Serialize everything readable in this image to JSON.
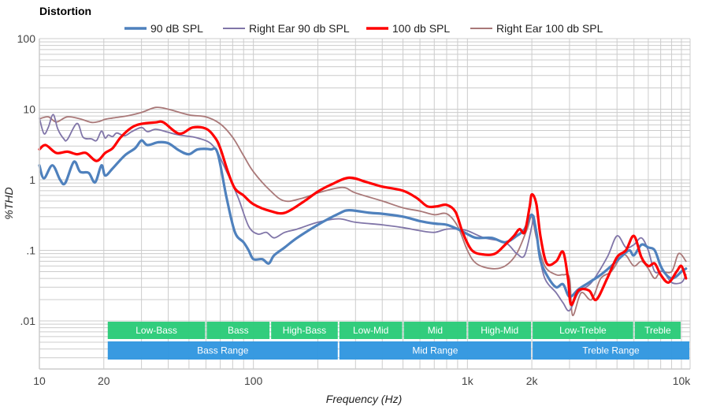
{
  "chart_data": {
    "type": "line",
    "title": "Distortion",
    "xlabel": "Frequency (Hz)",
    "ylabel": "%THD",
    "xscale": "log",
    "yscale": "log",
    "xlim": [
      10,
      11000
    ],
    "ylim": [
      0.0008,
      100
    ],
    "grid": true,
    "legend_position": "top-center",
    "x_ticks": [
      {
        "value": 10,
        "label": "10"
      },
      {
        "value": 20,
        "label": "20"
      },
      {
        "value": 100,
        "label": "100"
      },
      {
        "value": 1000,
        "label": "1k"
      },
      {
        "value": 2000,
        "label": "2k"
      },
      {
        "value": 10000,
        "label": "10k"
      }
    ],
    "y_ticks": [
      {
        "value": 100,
        "label": "100"
      },
      {
        "value": 10,
        "label": "10"
      },
      {
        "value": 1,
        "label": "1"
      },
      {
        "value": 0.1,
        "label": ".1"
      },
      {
        "value": 0.01,
        "label": ".01"
      }
    ],
    "series": [
      {
        "name": "90 dB SPL",
        "color": "#4f81bd",
        "width": 3.2,
        "points": [
          [
            10,
            1.6
          ],
          [
            10.5,
            1.05
          ],
          [
            11.5,
            1.6
          ],
          [
            12.5,
            1.0
          ],
          [
            13.2,
            0.9
          ],
          [
            14.5,
            1.8
          ],
          [
            15.5,
            1.3
          ],
          [
            17,
            1.25
          ],
          [
            18.2,
            0.92
          ],
          [
            19.5,
            1.6
          ],
          [
            20.3,
            1.15
          ],
          [
            22,
            1.45
          ],
          [
            25,
            2.2
          ],
          [
            28,
            2.8
          ],
          [
            30,
            3.6
          ],
          [
            32,
            3.1
          ],
          [
            36,
            3.4
          ],
          [
            40,
            3.3
          ],
          [
            45,
            2.6
          ],
          [
            50,
            2.3
          ],
          [
            55,
            2.7
          ],
          [
            63,
            2.7
          ],
          [
            68,
            2.4
          ],
          [
            75,
            0.55
          ],
          [
            82,
            0.18
          ],
          [
            90,
            0.13
          ],
          [
            95,
            0.1
          ],
          [
            100,
            0.075
          ],
          [
            110,
            0.075
          ],
          [
            118,
            0.065
          ],
          [
            125,
            0.085
          ],
          [
            140,
            0.11
          ],
          [
            160,
            0.15
          ],
          [
            200,
            0.23
          ],
          [
            250,
            0.33
          ],
          [
            280,
            0.37
          ],
          [
            350,
            0.34
          ],
          [
            400,
            0.33
          ],
          [
            500,
            0.3
          ],
          [
            600,
            0.26
          ],
          [
            700,
            0.24
          ],
          [
            800,
            0.23
          ],
          [
            900,
            0.2
          ],
          [
            1000,
            0.17
          ],
          [
            1100,
            0.15
          ],
          [
            1300,
            0.15
          ],
          [
            1500,
            0.13
          ],
          [
            1700,
            0.16
          ],
          [
            1850,
            0.2
          ],
          [
            2000,
            0.32
          ],
          [
            2100,
            0.18
          ],
          [
            2200,
            0.07
          ],
          [
            2400,
            0.04
          ],
          [
            2600,
            0.03
          ],
          [
            2800,
            0.033
          ],
          [
            3000,
            0.022
          ],
          [
            3300,
            0.028
          ],
          [
            3700,
            0.035
          ],
          [
            4200,
            0.045
          ],
          [
            4700,
            0.06
          ],
          [
            5200,
            0.08
          ],
          [
            5700,
            0.1
          ],
          [
            6000,
            0.085
          ],
          [
            6500,
            0.12
          ],
          [
            7000,
            0.11
          ],
          [
            7500,
            0.1
          ],
          [
            8000,
            0.06
          ],
          [
            8500,
            0.045
          ],
          [
            9000,
            0.04
          ],
          [
            9500,
            0.043
          ],
          [
            10000,
            0.05
          ],
          [
            10500,
            0.055
          ]
        ]
      },
      {
        "name": "Right Ear 90 db SPL",
        "color": "#8075a8",
        "width": 1.8,
        "points": [
          [
            10,
            7.5
          ],
          [
            10.5,
            4.5
          ],
          [
            11,
            5.5
          ],
          [
            11.6,
            8.4
          ],
          [
            12.2,
            5.2
          ],
          [
            13,
            3.8
          ],
          [
            13.5,
            3.7
          ],
          [
            15,
            6.3
          ],
          [
            16,
            4.0
          ],
          [
            17.5,
            3.8
          ],
          [
            18.5,
            3.6
          ],
          [
            19.5,
            4.9
          ],
          [
            20.3,
            3.9
          ],
          [
            21,
            4.3
          ],
          [
            22,
            4.1
          ],
          [
            23,
            4.6
          ],
          [
            25,
            4.2
          ],
          [
            27,
            4.8
          ],
          [
            30,
            5.5
          ],
          [
            32,
            4.8
          ],
          [
            35,
            5.2
          ],
          [
            40,
            4.7
          ],
          [
            45,
            4.3
          ],
          [
            55,
            3.9
          ],
          [
            65,
            3.0
          ],
          [
            75,
            1.3
          ],
          [
            85,
            0.55
          ],
          [
            95,
            0.22
          ],
          [
            105,
            0.17
          ],
          [
            115,
            0.18
          ],
          [
            125,
            0.15
          ],
          [
            140,
            0.18
          ],
          [
            160,
            0.2
          ],
          [
            200,
            0.25
          ],
          [
            250,
            0.28
          ],
          [
            300,
            0.25
          ],
          [
            400,
            0.23
          ],
          [
            500,
            0.21
          ],
          [
            600,
            0.19
          ],
          [
            700,
            0.18
          ],
          [
            800,
            0.2
          ],
          [
            900,
            0.2
          ],
          [
            1000,
            0.19
          ],
          [
            1200,
            0.15
          ],
          [
            1500,
            0.13
          ],
          [
            1700,
            0.09
          ],
          [
            1850,
            0.085
          ],
          [
            2000,
            0.22
          ],
          [
            2050,
            0.3
          ],
          [
            2150,
            0.1
          ],
          [
            2300,
            0.04
          ],
          [
            2600,
            0.025
          ],
          [
            2800,
            0.018
          ],
          [
            3000,
            0.014
          ],
          [
            3300,
            0.025
          ],
          [
            3800,
            0.035
          ],
          [
            4500,
            0.08
          ],
          [
            5000,
            0.16
          ],
          [
            5500,
            0.11
          ],
          [
            6000,
            0.12
          ],
          [
            6500,
            0.15
          ],
          [
            7000,
            0.1
          ],
          [
            7500,
            0.05
          ],
          [
            8200,
            0.05
          ],
          [
            9000,
            0.035
          ],
          [
            10000,
            0.035
          ],
          [
            10500,
            0.045
          ]
        ]
      },
      {
        "name": "100 db SPL",
        "color": "#ff0000",
        "width": 3.2,
        "points": [
          [
            10,
            2.7
          ],
          [
            10.7,
            3.1
          ],
          [
            12,
            2.4
          ],
          [
            13.5,
            2.5
          ],
          [
            15,
            2.3
          ],
          [
            16.5,
            2.4
          ],
          [
            18.5,
            1.85
          ],
          [
            20.3,
            2.4
          ],
          [
            22,
            2.8
          ],
          [
            24,
            4.0
          ],
          [
            27,
            5.5
          ],
          [
            30,
            6.2
          ],
          [
            35,
            6.5
          ],
          [
            38,
            6.5
          ],
          [
            45,
            4.5
          ],
          [
            52,
            5.5
          ],
          [
            60,
            5.3
          ],
          [
            66,
            4.0
          ],
          [
            70,
            2.8
          ],
          [
            76,
            1.3
          ],
          [
            82,
            0.75
          ],
          [
            90,
            0.6
          ],
          [
            100,
            0.45
          ],
          [
            120,
            0.36
          ],
          [
            140,
            0.34
          ],
          [
            170,
            0.48
          ],
          [
            200,
            0.68
          ],
          [
            230,
            0.85
          ],
          [
            280,
            1.07
          ],
          [
            340,
            0.92
          ],
          [
            400,
            0.8
          ],
          [
            500,
            0.7
          ],
          [
            580,
            0.55
          ],
          [
            650,
            0.42
          ],
          [
            720,
            0.42
          ],
          [
            800,
            0.44
          ],
          [
            880,
            0.35
          ],
          [
            950,
            0.18
          ],
          [
            1050,
            0.1
          ],
          [
            1200,
            0.087
          ],
          [
            1350,
            0.09
          ],
          [
            1500,
            0.12
          ],
          [
            1650,
            0.16
          ],
          [
            1750,
            0.2
          ],
          [
            1850,
            0.18
          ],
          [
            1950,
            0.4
          ],
          [
            2000,
            0.62
          ],
          [
            2100,
            0.45
          ],
          [
            2200,
            0.15
          ],
          [
            2350,
            0.065
          ],
          [
            2600,
            0.07
          ],
          [
            2800,
            0.095
          ],
          [
            2950,
            0.04
          ],
          [
            3050,
            0.017
          ],
          [
            3300,
            0.027
          ],
          [
            3700,
            0.027
          ],
          [
            4000,
            0.02
          ],
          [
            4500,
            0.04
          ],
          [
            5000,
            0.08
          ],
          [
            5500,
            0.1
          ],
          [
            6000,
            0.16
          ],
          [
            6500,
            0.08
          ],
          [
            7000,
            0.06
          ],
          [
            7500,
            0.065
          ],
          [
            8000,
            0.045
          ],
          [
            8700,
            0.035
          ],
          [
            9500,
            0.05
          ],
          [
            10000,
            0.06
          ],
          [
            10500,
            0.04
          ]
        ]
      },
      {
        "name": "Right Ear 100 db SPL",
        "color": "#a97878",
        "width": 1.8,
        "points": [
          [
            10,
            7.3
          ],
          [
            11,
            7.8
          ],
          [
            12,
            6.6
          ],
          [
            13.5,
            7.8
          ],
          [
            15.5,
            7.3
          ],
          [
            17.5,
            6.5
          ],
          [
            19,
            6.7
          ],
          [
            20.3,
            7.2
          ],
          [
            22,
            7.5
          ],
          [
            26,
            8.1
          ],
          [
            30,
            9.0
          ],
          [
            35,
            10.6
          ],
          [
            40,
            10.0
          ],
          [
            50,
            8.3
          ],
          [
            60,
            7.8
          ],
          [
            70,
            6.2
          ],
          [
            80,
            4.0
          ],
          [
            90,
            2.2
          ],
          [
            100,
            1.3
          ],
          [
            120,
            0.7
          ],
          [
            140,
            0.5
          ],
          [
            170,
            0.55
          ],
          [
            200,
            0.65
          ],
          [
            260,
            0.78
          ],
          [
            300,
            0.65
          ],
          [
            400,
            0.5
          ],
          [
            500,
            0.4
          ],
          [
            600,
            0.36
          ],
          [
            700,
            0.32
          ],
          [
            800,
            0.33
          ],
          [
            900,
            0.22
          ],
          [
            1000,
            0.1
          ],
          [
            1100,
            0.065
          ],
          [
            1300,
            0.055
          ],
          [
            1500,
            0.06
          ],
          [
            1700,
            0.09
          ],
          [
            1900,
            0.2
          ],
          [
            2000,
            0.3
          ],
          [
            2100,
            0.15
          ],
          [
            2300,
            0.06
          ],
          [
            2600,
            0.045
          ],
          [
            2800,
            0.045
          ],
          [
            3000,
            0.04
          ],
          [
            3100,
            0.012
          ],
          [
            3400,
            0.025
          ],
          [
            3800,
            0.02
          ],
          [
            4200,
            0.04
          ],
          [
            4700,
            0.05
          ],
          [
            5200,
            0.08
          ],
          [
            5500,
            0.085
          ],
          [
            6000,
            0.06
          ],
          [
            6500,
            0.07
          ],
          [
            7000,
            0.055
          ],
          [
            7500,
            0.04
          ],
          [
            8000,
            0.05
          ],
          [
            9000,
            0.05
          ],
          [
            9700,
            0.09
          ],
          [
            10500,
            0.07
          ]
        ]
      }
    ],
    "bands": [
      {
        "label": "Low-Bass",
        "from": 20,
        "to": 60,
        "row": 1
      },
      {
        "label": "Bass",
        "from": 60,
        "to": 120,
        "row": 1
      },
      {
        "label": "High-Bass",
        "from": 120,
        "to": 250,
        "row": 1
      },
      {
        "label": "Low-Mid",
        "from": 250,
        "to": 500,
        "row": 1
      },
      {
        "label": "Mid",
        "from": 500,
        "to": 1000,
        "row": 1
      },
      {
        "label": "High-Mid",
        "from": 1000,
        "to": 2000,
        "row": 1
      },
      {
        "label": "Low-Treble",
        "from": 2000,
        "to": 6000,
        "row": 1
      },
      {
        "label": "Treble",
        "from": 6000,
        "to": 10000,
        "row": 1
      },
      {
        "label": "Bass Range",
        "from": 20,
        "to": 250,
        "row": 2
      },
      {
        "label": "Mid Range",
        "from": 250,
        "to": 2000,
        "row": 2
      },
      {
        "label": "Treble Range",
        "from": 2000,
        "to": 11000,
        "row": 2
      }
    ],
    "band_colors": {
      "row1": "#2ecc7a",
      "row2": "#3498e0"
    }
  }
}
